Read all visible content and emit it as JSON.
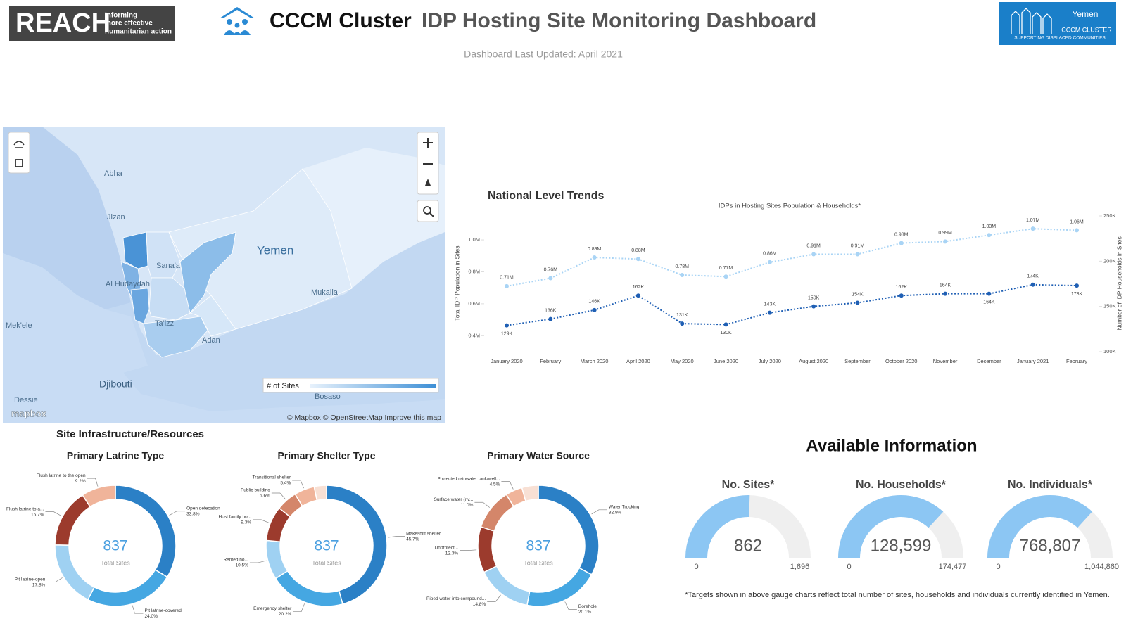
{
  "header": {
    "reach_logo": "REACH",
    "reach_tagline": [
      "Informing",
      "more effective",
      "humanitarian action"
    ],
    "title_bold": "CCCM Cluster",
    "title_rest": "IDP Hosting Site Monitoring Dashboard",
    "updated": "Dashboard Last Updated: April 2021",
    "cluster_logo": {
      "country": "Yemen",
      "name": "CCCM CLUSTER",
      "tagline": "SUPPORTING DISPLACED COMMUNITIES"
    }
  },
  "map": {
    "labels": [
      "Abha",
      "Jizan",
      "Yemen",
      "Sana'a",
      "Al Hudaydah",
      "Mukalla",
      "Ta'izz",
      "Adan",
      "Mek'ele",
      "Djibouti",
      "Dessie",
      "Bosaso"
    ],
    "legend_title": "# of Sites",
    "attribution": "© Mapbox © OpenStreetMap Improve this map",
    "logo": "mapbox"
  },
  "sections": {
    "infrastructure": "Site Infrastructure/Resources",
    "available": "Available Information",
    "footnote": "*Targets shown in above gauge charts reflect total number of sites, households and individuals currently identified in Yemen."
  },
  "chart_data": [
    {
      "type": "line",
      "title": "National Level Trends",
      "subtitle": "IDPs in Hosting Sites Population & Households*",
      "ylabel": "Total IDP Population in Sites",
      "y2label": "Number of IDP Households in Sites",
      "categories": [
        "January 2020",
        "February",
        "March 2020",
        "April 2020",
        "May 2020",
        "June 2020",
        "July 2020",
        "August 2020",
        "September",
        "October 2020",
        "November",
        "December",
        "January 2021",
        "February"
      ],
      "series": [
        {
          "color": "#a9d4f5",
          "values": [
            710000,
            760000,
            890000,
            880000,
            780000,
            770000,
            860000,
            910000,
            910000,
            980000,
            990000,
            1030000,
            1070000,
            1060000
          ],
          "value_labels": [
            "0.71M",
            "0.76M",
            "0.89M",
            "0.88M",
            "0.78M",
            "0.77M",
            "0.86M",
            "0.91M",
            "0.91M",
            "0.98M",
            "0.99M",
            "1.03M",
            "1.07M",
            "1.06M"
          ]
        },
        {
          "color": "#1f5fb4",
          "axis": "y2",
          "values": [
            129000,
            136000,
            146000,
            162000,
            131000,
            130000,
            143000,
            150000,
            154000,
            162000,
            164000,
            164000,
            174000,
            173000
          ],
          "value_labels": [
            "129K",
            "136K",
            "146K",
            "162K",
            "131K",
            "130K",
            "143K",
            "150K",
            "154K",
            "162K",
            "164K",
            "164K",
            "174K",
            "173K"
          ]
        }
      ],
      "ylim": [
        300000,
        1150000
      ],
      "yticks": [
        {
          "value": 400000,
          "label": "0.4M"
        },
        {
          "value": 600000,
          "label": "0.6M"
        },
        {
          "value": 800000,
          "label": "0.8M"
        },
        {
          "value": 1000000,
          "label": "1.0M"
        }
      ],
      "y2lim": [
        100000,
        250000
      ],
      "y2ticks": [
        {
          "value": 100000,
          "label": "100K"
        },
        {
          "value": 150000,
          "label": "150K"
        },
        {
          "value": 200000,
          "label": "200K"
        },
        {
          "value": 250000,
          "label": "250K"
        }
      ]
    },
    {
      "type": "pie",
      "title": "Primary Latrine Type",
      "total": 837,
      "total_label": "Total Sites",
      "categories": [
        "Open defecation",
        "Pit latrine-covered",
        "Pit latrine-open",
        "Flush latrine to a...",
        "Flush latrine to the open"
      ],
      "values": [
        33.8,
        24.0,
        17.8,
        15.7,
        9.2
      ],
      "value_labels": [
        "33.8%",
        "24.0%",
        "17.8%",
        "15.7%",
        "9.2%"
      ],
      "colors": [
        "#2b80c6",
        "#45a7e2",
        "#9fd1f2",
        "#9c3b2d",
        "#f0b49a"
      ]
    },
    {
      "type": "pie",
      "title": "Primary Shelter Type",
      "total": 837,
      "total_label": "Total Sites",
      "categories": [
        "Makeshift shelter",
        "Emergency shelter",
        "Rented ho...",
        "Host family ho...",
        "Public building",
        "Transitional shelter",
        null
      ],
      "values": [
        45.7,
        20.2,
        10.5,
        9.3,
        5.6,
        5.4,
        3.3
      ],
      "value_labels": [
        "45.7%",
        "20.2%",
        "10.5%",
        "9.3%",
        "5.6%",
        "5.4%",
        null
      ],
      "colors": [
        "#2b80c6",
        "#45a7e2",
        "#9fd1f2",
        "#9c3b2d",
        "#d4866a",
        "#f0b49a",
        "#f8e0d4"
      ]
    },
    {
      "type": "pie",
      "title": "Primary Water Source",
      "total": 837,
      "total_label": "Total Sites",
      "categories": [
        "Water Trucking",
        "Borehole",
        "Piped water into compound...",
        "Unprotect...",
        "Surface water (riv...",
        "Protected rainwater tank/well...",
        null
      ],
      "values": [
        32.9,
        20.1,
        14.8,
        12.3,
        11.0,
        4.5,
        4.4
      ],
      "value_labels": [
        "32.9%",
        "20.1%",
        "14.8%",
        "12.3%",
        "11.0%",
        "4.5%",
        null
      ],
      "colors": [
        "#2b80c6",
        "#45a7e2",
        "#9fd1f2",
        "#9c3b2d",
        "#d4866a",
        "#f0b49a",
        "#f8e0d4"
      ]
    },
    {
      "type": "gauge",
      "title": "No. Sites*",
      "value": 862,
      "color": "#8cc6f3",
      "ylim": [
        0,
        1696
      ],
      "yticks": [
        0,
        {
          "value": 1696,
          "label": "1,696"
        }
      ]
    },
    {
      "type": "gauge",
      "title": "No. Households*",
      "value": 128599,
      "value_label": "128,599",
      "color": "#8cc6f3",
      "ylim": [
        0,
        174477
      ],
      "yticks": [
        0,
        {
          "value": 174477,
          "label": "174,477"
        }
      ]
    },
    {
      "type": "gauge",
      "title": "No. Individuals*",
      "value": 768807,
      "value_label": "768,807",
      "color": "#8cc6f3",
      "ylim": [
        0,
        1044860
      ],
      "yticks": [
        0,
        {
          "value": 1044860,
          "label": "1,044,860"
        }
      ]
    }
  ]
}
